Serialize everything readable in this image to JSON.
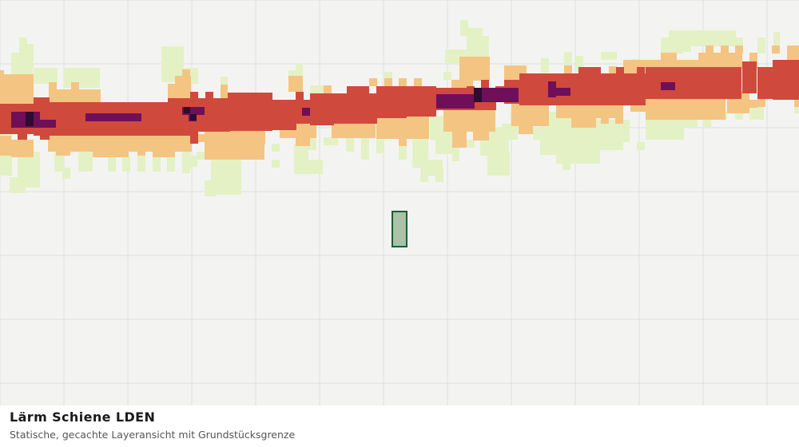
{
  "map": {
    "title": "Lärm Schiene LDEN",
    "subtitle": "Statische, gecachte Layeransicht mit Grundstücksgrenze",
    "layer": "Lärm Schiene LDEN",
    "legend_classes": [
      {
        "class": "lowest",
        "color": "#e4f1c4"
      },
      {
        "class": "low",
        "color": "#f4c483"
      },
      {
        "class": "high",
        "color": "#cf4a3d"
      },
      {
        "class": "very-high",
        "color": "#6f0f59"
      },
      {
        "class": "extreme",
        "color": "#2e0d2f"
      }
    ],
    "grid_color": "#dedfdc",
    "background_color": "#f3f4f2",
    "parcel": {
      "fill": "#a9c2a8",
      "stroke": "#1d5e30"
    }
  }
}
